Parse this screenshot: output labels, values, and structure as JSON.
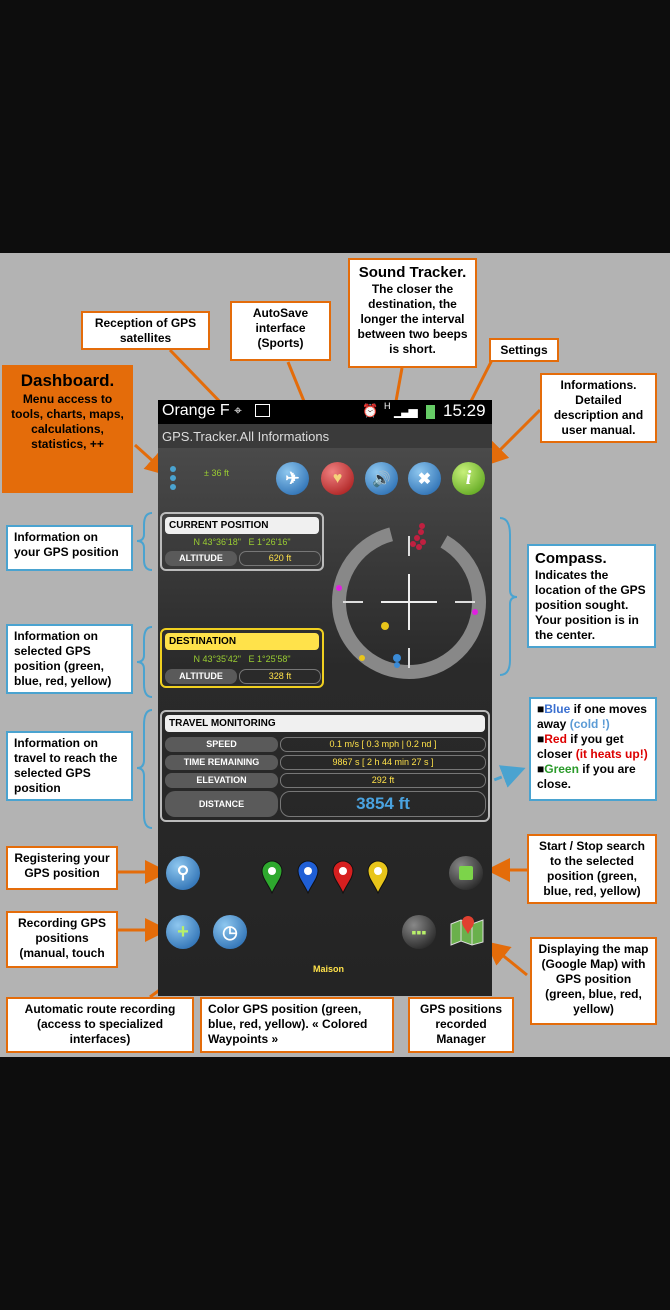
{
  "callouts": {
    "dashboard": {
      "title": "Dashboard.",
      "body": "Menu access to tools, charts, maps, calculations, statistics, ++"
    },
    "reception": "Reception of GPS satellites",
    "autosave": "AutoSave interface (Sports)",
    "sound": {
      "title": "Sound Tracker.",
      "body": "The closer the destination, the longer the interval between two beeps is short."
    },
    "settings": "Settings",
    "informations": "Informations. Detailed description and user manual.",
    "info_position": "Information on your GPS position",
    "info_selected": "Information on selected GPS position (green, blue, red, yellow)",
    "info_travel": "Information on travel to reach the selected GPS position",
    "compass": {
      "title": "Compass.",
      "body": "Indicates the location of the GPS position sought. Your position is in the center."
    },
    "colors": {
      "blue": "Blue",
      "blue_a": " if one moves away ",
      "blue_b": "(cold !)",
      "red": "Red",
      "red_a": " if you get closer ",
      "red_b": "(it heats up!)",
      "green": "Green",
      "green_a": " if you are close."
    },
    "registering": "Registering your GPS position",
    "recording": "Recording GPS positions (manual, touch",
    "start_stop": "Start / Stop search to the selected position (green, blue, red, yellow)",
    "displaying_map": "Displaying the map (Google Map) with GPS position (green, blue, red, yellow)",
    "auto_route": "Automatic route recording (access to specialized interfaces)",
    "color_gps": "Color GPS position (green, blue, red, yellow). « Colored Waypoints »",
    "manager": "GPS positions recorded Manager"
  },
  "phone": {
    "carrier": "Orange F",
    "time": "15:29",
    "net": "H",
    "app_title": "GPS.Tracker.All Informations",
    "accuracy": "± 36 ft",
    "current": {
      "title": "CURRENT POSITION",
      "lat": "N 43°36'18\"",
      "lon": "E 1°26'16\"",
      "alt_label": "ALTITUDE",
      "alt_value": "620 ft"
    },
    "destination": {
      "title": "DESTINATION",
      "lat": "N 43°35'42\"",
      "lon": "E 1°25'58\"",
      "alt_label": "ALTITUDE",
      "alt_value": "328 ft"
    },
    "travel": {
      "title": "TRAVEL MONITORING",
      "speed_label": "SPEED",
      "speed_value": "0.1 m/s [ 0.3 mph | 0.2 nd ]",
      "time_label": "TIME REMAINING",
      "time_value": "9867 s [ 2 h 44 min 27 s ]",
      "elev_label": "ELEVATION",
      "elev_value": "292 ft",
      "dist_label": "DISTANCE",
      "dist_value": "3854 ft"
    },
    "waypoint_label": "Maison",
    "info_glyph": "i"
  },
  "colors": {
    "callout_border": "#e46c0a",
    "accent_blue": "#4aa3d0",
    "waypoint_green": "#2ea82e",
    "waypoint_blue": "#1f5fd6",
    "waypoint_red": "#d61f1f",
    "waypoint_yellow": "#e8c51a"
  }
}
